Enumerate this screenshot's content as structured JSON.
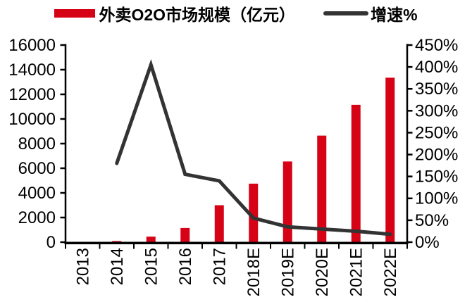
{
  "legend": [
    {
      "label": "外卖O2O市场规模（亿元）",
      "swatch": "bar-swatch",
      "color": "#d60216"
    },
    {
      "label": "增速%",
      "swatch": "line-swatch",
      "color": "#333333"
    }
  ],
  "chart_data": {
    "type": "bar",
    "subtype": "combo-bar-line",
    "title": "",
    "categories": [
      "2013",
      "2014",
      "2015",
      "2016",
      "2017",
      "2018E",
      "2019E",
      "2020E",
      "2021E",
      "2022E"
    ],
    "series": [
      {
        "name": "外卖O2O市场规模（亿元）",
        "type": "bar",
        "axis": "left",
        "color": "#d60216",
        "values": [
          30,
          90,
          450,
          1150,
          3000,
          4750,
          6550,
          8650,
          11150,
          13350
        ]
      },
      {
        "name": "增速%",
        "type": "line",
        "axis": "right",
        "color": "#333333",
        "values": [
          null,
          180,
          405,
          155,
          140,
          55,
          35,
          30,
          25,
          18
        ]
      }
    ],
    "left_axis": {
      "min": 0,
      "max": 16000,
      "step": 2000,
      "tick_labels": [
        "0",
        "2000",
        "4000",
        "6000",
        "8000",
        "10000",
        "12000",
        "14000",
        "16000"
      ]
    },
    "right_axis": {
      "min": 0,
      "max": 450,
      "step": 50,
      "unit": "%",
      "tick_labels": [
        "0%",
        "50%",
        "100%",
        "150%",
        "200%",
        "250%",
        "300%",
        "350%",
        "400%",
        "450%"
      ]
    },
    "grid": false,
    "legend_position": "top",
    "axis_color": "#000000"
  }
}
